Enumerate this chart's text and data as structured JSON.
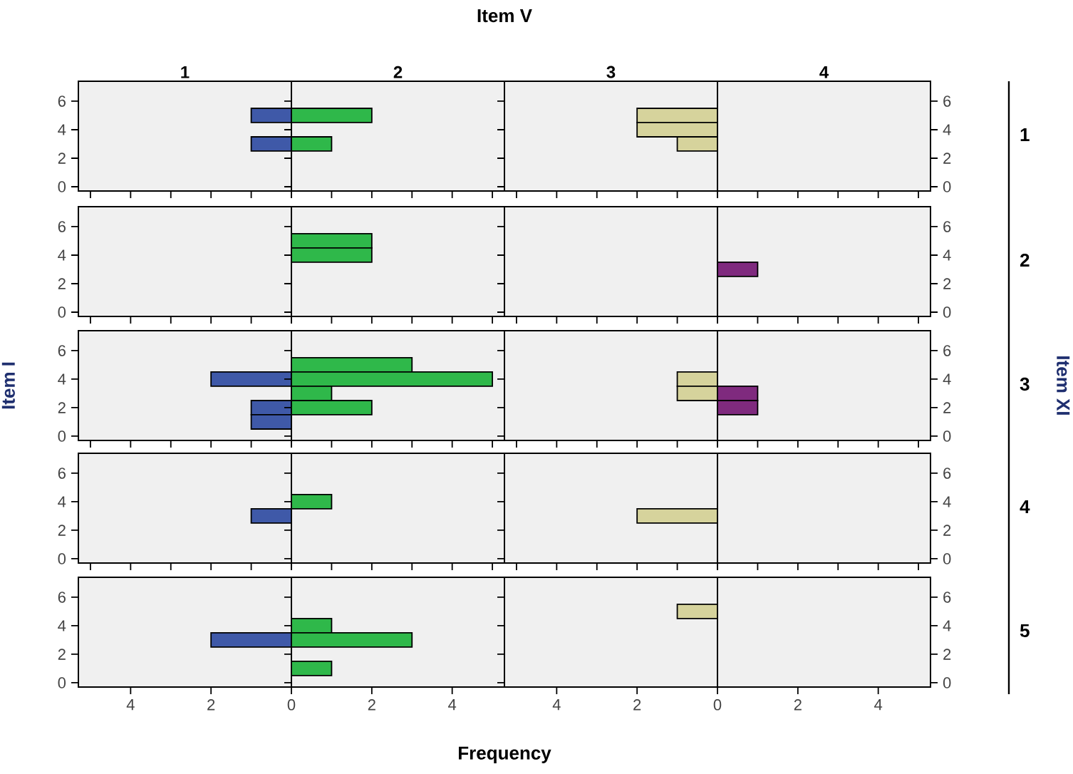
{
  "chart_data": [
    {
      "type": "bar",
      "orientation": "horizontal",
      "title": "1",
      "xlim": [
        5.3,
        0
      ],
      "ylim": [
        -0.3,
        7.4
      ],
      "yticks": [
        0,
        2,
        4,
        6
      ],
      "tick_labels": "y",
      "series": [
        {
          "color": "#3f59a8",
          "x": [
            5,
            3
          ],
          "values": [
            1,
            1
          ]
        }
      ]
    },
    {
      "type": "bar",
      "orientation": "horizontal",
      "title": "2",
      "annotations": [
        "Item V"
      ],
      "xlim": [
        0,
        5.3
      ],
      "ylim": [
        -0.3,
        7.4
      ],
      "tick_labels": false,
      "series": [
        {
          "color": "#2fb84a",
          "x": [
            5,
            3
          ],
          "values": [
            2,
            1
          ]
        }
      ]
    },
    {
      "type": "bar",
      "orientation": "horizontal",
      "title": "3",
      "xlim": [
        5.3,
        0
      ],
      "ylim": [
        -0.3,
        7.4
      ],
      "tick_labels": false,
      "series": [
        {
          "color": "#d6d39c",
          "x": [
            5,
            4,
            3
          ],
          "values": [
            2,
            2,
            1
          ]
        }
      ]
    },
    {
      "type": "bar",
      "orientation": "horizontal",
      "title": "4",
      "annotations": [
        "1"
      ],
      "xlim": [
        0,
        5.3
      ],
      "ylim": [
        -0.3,
        7.4
      ],
      "yticks": [
        0,
        2,
        4,
        6
      ],
      "tick_labels": "y"
    },
    {
      "type": "bar",
      "orientation": "horizontal",
      "xlim": [
        5.3,
        0
      ],
      "ylim": [
        -0.3,
        7.4
      ],
      "yticks": [
        0,
        2,
        4,
        6
      ],
      "tick_labels": "y"
    },
    {
      "type": "bar",
      "orientation": "horizontal",
      "xlim": [
        0,
        5.3
      ],
      "ylim": [
        -0.3,
        7.4
      ],
      "tick_labels": false,
      "series": [
        {
          "color": "#2fb84a",
          "x": [
            5,
            4
          ],
          "values": [
            2,
            2
          ]
        }
      ]
    },
    {
      "type": "bar",
      "orientation": "horizontal",
      "xlim": [
        5.3,
        0
      ],
      "ylim": [
        -0.3,
        7.4
      ],
      "tick_labels": false
    },
    {
      "type": "bar",
      "orientation": "horizontal",
      "annotations": [
        "2"
      ],
      "xlim": [
        0,
        5.3
      ],
      "ylim": [
        -0.3,
        7.4
      ],
      "yticks": [
        0,
        2,
        4,
        6
      ],
      "tick_labels": "y",
      "series": [
        {
          "color": "#7f2a7e",
          "x": [
            3
          ],
          "values": [
            1
          ]
        }
      ]
    },
    {
      "type": "bar",
      "orientation": "horizontal",
      "ylabel": "Item I",
      "xlim": [
        5.3,
        0
      ],
      "ylim": [
        -0.3,
        7.4
      ],
      "yticks": [
        0,
        2,
        4,
        6
      ],
      "tick_labels": "y",
      "series": [
        {
          "color": "#3f59a8",
          "x": [
            4,
            2,
            1
          ],
          "values": [
            2,
            1,
            1
          ]
        }
      ]
    },
    {
      "type": "bar",
      "orientation": "horizontal",
      "xlim": [
        0,
        5.3
      ],
      "ylim": [
        -0.3,
        7.4
      ],
      "tick_labels": false,
      "series": [
        {
          "color": "#2fb84a",
          "x": [
            5,
            4,
            3,
            2
          ],
          "values": [
            3,
            5,
            1,
            2
          ]
        }
      ]
    },
    {
      "type": "bar",
      "orientation": "horizontal",
      "xlim": [
        5.3,
        0
      ],
      "ylim": [
        -0.3,
        7.4
      ],
      "tick_labels": false,
      "series": [
        {
          "color": "#d6d39c",
          "x": [
            4,
            3
          ],
          "values": [
            1,
            1
          ]
        }
      ]
    },
    {
      "type": "bar",
      "orientation": "horizontal",
      "y2label": "Item XI",
      "annotations": [
        "3"
      ],
      "xlim": [
        0,
        5.3
      ],
      "ylim": [
        -0.3,
        7.4
      ],
      "yticks": [
        0,
        2,
        4,
        6
      ],
      "tick_labels": "y",
      "series": [
        {
          "color": "#7f2a7e",
          "x": [
            3,
            2
          ],
          "values": [
            1,
            1
          ]
        }
      ]
    },
    {
      "type": "bar",
      "orientation": "horizontal",
      "xlim": [
        5.3,
        0
      ],
      "ylim": [
        -0.3,
        7.4
      ],
      "yticks": [
        0,
        2,
        4,
        6
      ],
      "tick_labels": "y",
      "series": [
        {
          "color": "#3f59a8",
          "x": [
            3
          ],
          "values": [
            1
          ]
        }
      ]
    },
    {
      "type": "bar",
      "orientation": "horizontal",
      "xlim": [
        0,
        5.3
      ],
      "ylim": [
        -0.3,
        7.4
      ],
      "tick_labels": false,
      "series": [
        {
          "color": "#2fb84a",
          "x": [
            4
          ],
          "values": [
            1
          ]
        }
      ]
    },
    {
      "type": "bar",
      "orientation": "horizontal",
      "xlim": [
        5.3,
        0
      ],
      "ylim": [
        -0.3,
        7.4
      ],
      "tick_labels": false,
      "series": [
        {
          "color": "#d6d39c",
          "x": [
            3
          ],
          "values": [
            2
          ]
        }
      ]
    },
    {
      "type": "bar",
      "orientation": "horizontal",
      "annotations": [
        "4"
      ],
      "xlim": [
        0,
        5.3
      ],
      "ylim": [
        -0.3,
        7.4
      ],
      "yticks": [
        0,
        2,
        4,
        6
      ],
      "tick_labels": "y"
    },
    {
      "type": "bar",
      "orientation": "horizontal",
      "xlim": [
        5.3,
        0
      ],
      "xticks": [
        4,
        2,
        0
      ],
      "ylim": [
        -0.3,
        7.4
      ],
      "yticks": [
        0,
        2,
        4,
        6
      ],
      "series": [
        {
          "color": "#3f59a8",
          "x": [
            3
          ],
          "values": [
            2
          ]
        }
      ]
    },
    {
      "type": "bar",
      "orientation": "horizontal",
      "xlabel": "Frequency",
      "xlim": [
        0,
        5.3
      ],
      "xticks": [
        2,
        4
      ],
      "ylim": [
        -0.3,
        7.4
      ],
      "tick_labels": "x",
      "series": [
        {
          "color": "#2fb84a",
          "x": [
            4,
            3,
            1
          ],
          "values": [
            1,
            3,
            1
          ]
        }
      ]
    },
    {
      "type": "bar",
      "orientation": "horizontal",
      "xlim": [
        5.3,
        0
      ],
      "xticks": [
        4,
        2,
        0
      ],
      "ylim": [
        -0.3,
        7.4
      ],
      "tick_labels": "x",
      "series": [
        {
          "color": "#d6d39c",
          "x": [
            5
          ],
          "values": [
            1
          ]
        }
      ]
    },
    {
      "type": "bar",
      "orientation": "horizontal",
      "annotations": [
        "5"
      ],
      "xlim": [
        0,
        5.3
      ],
      "xticks": [
        2,
        4
      ],
      "ylim": [
        -0.3,
        7.4
      ],
      "yticks": [
        0,
        2,
        4,
        6
      ]
    }
  ]
}
